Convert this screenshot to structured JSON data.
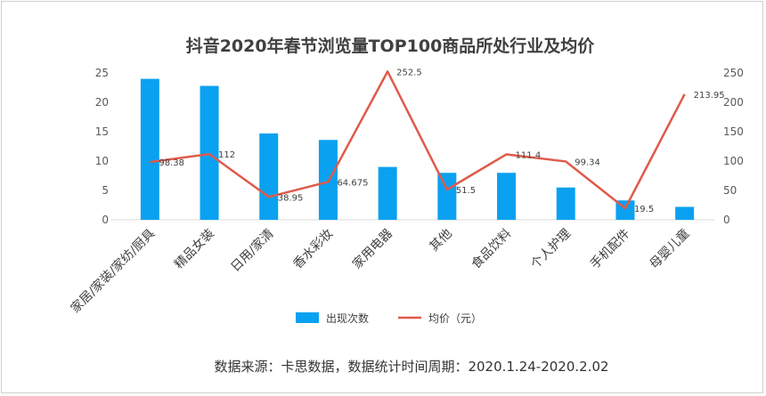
{
  "chart_data": {
    "type": "bar-line combo",
    "title": "抖音2020年春节浏览量TOP100商品所处行业及均价",
    "categories": [
      "家居/家装/家纺/厨具",
      "精品女装",
      "日用/家清",
      "香水彩妆",
      "家用电器",
      "其他",
      "食品饮料",
      "个人护理",
      "手机配件",
      "母婴儿童"
    ],
    "series": [
      {
        "name": "出现次数",
        "type": "bar",
        "axis": "left",
        "color": "#0aa1f1",
        "values": [
          24,
          22.8,
          14.7,
          13.6,
          9,
          8,
          8,
          5.5,
          3.3,
          2.2
        ]
      },
      {
        "name": "均价（元）",
        "type": "line",
        "axis": "right",
        "color": "#e05a4b",
        "values": [
          98.38,
          112,
          38.95,
          64.675,
          252.5,
          51.5,
          111.4,
          99.34,
          19.5,
          213.95
        ],
        "labels": [
          "98.38",
          "112",
          "38.95",
          "64.675",
          "252.5",
          "51.5",
          "111.4",
          "99.34",
          "19.5",
          "213.95"
        ]
      }
    ],
    "left_axis": {
      "ticks": [
        "0",
        "5",
        "10",
        "15",
        "20",
        "25"
      ],
      "range": [
        0,
        25
      ]
    },
    "right_axis": {
      "ticks": [
        "0",
        "50",
        "100",
        "150",
        "200",
        "250"
      ],
      "range": [
        0,
        250
      ]
    },
    "legend_position": "bottom",
    "grid": false
  },
  "footer": {
    "source": "数据来源：卡思数据，数据统计时间周期：2020.1.24-2020.2.02"
  }
}
